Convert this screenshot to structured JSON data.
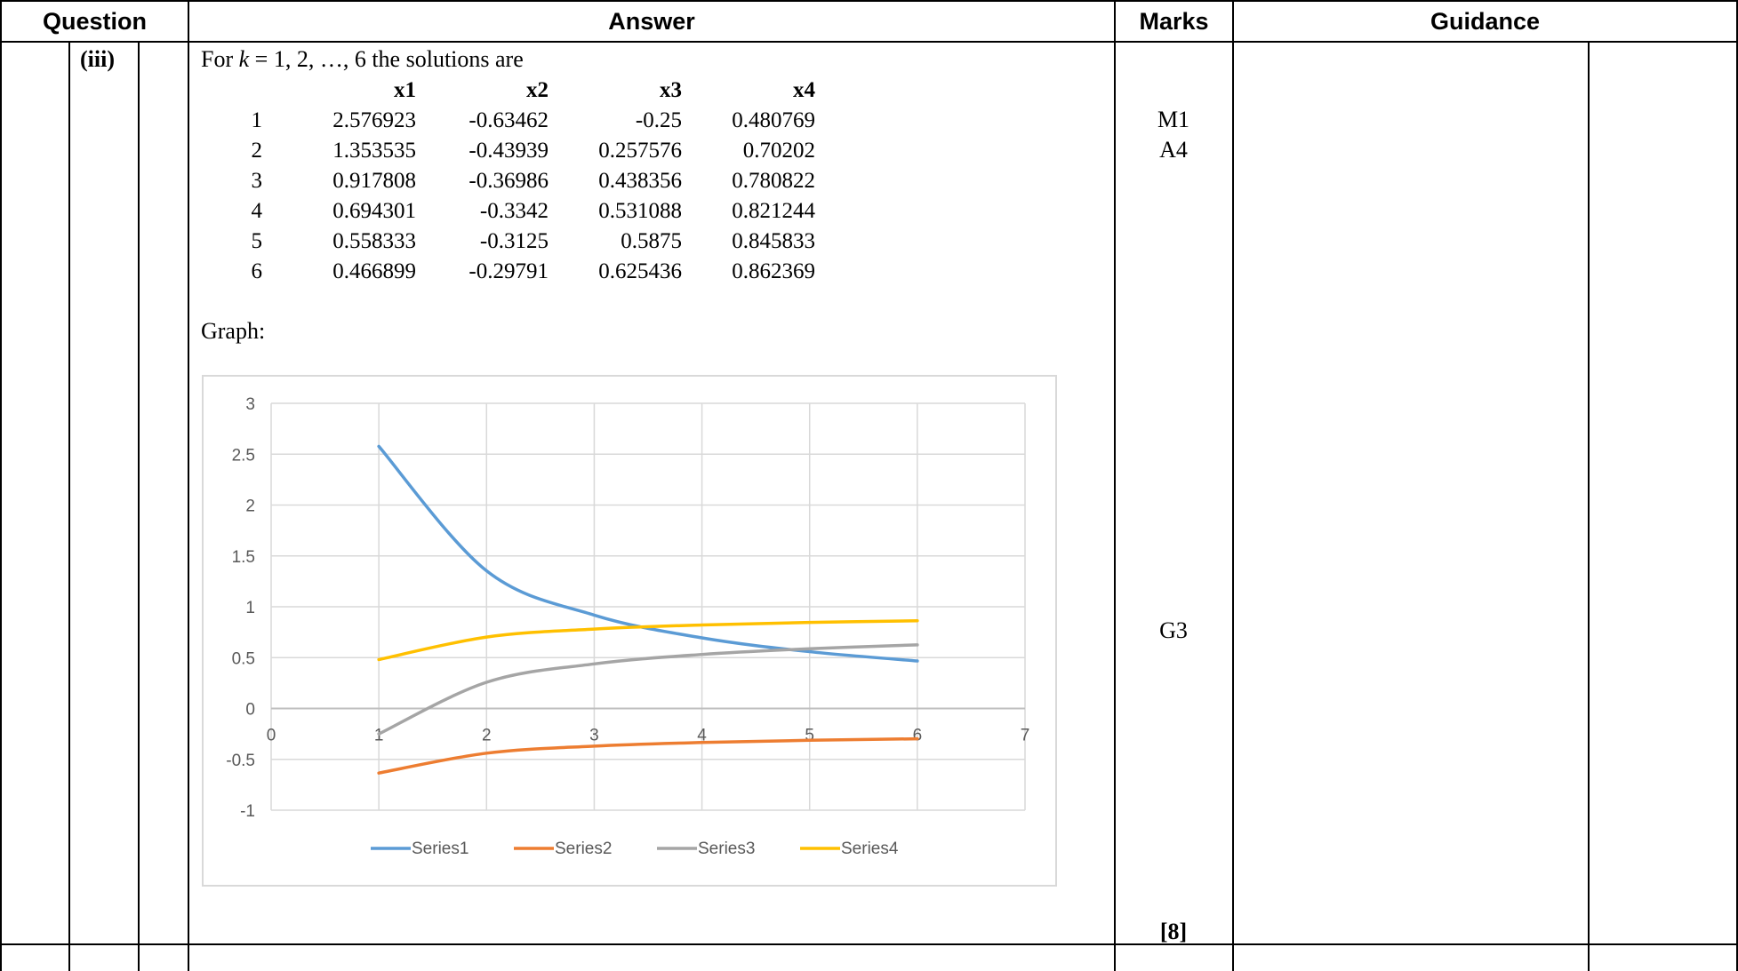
{
  "headers": {
    "question": "Question",
    "answer": "Answer",
    "marks": "Marks",
    "guidance": "Guidance"
  },
  "question_part": "(iii)",
  "intro": {
    "prefix": "For ",
    "k": "k",
    "suffix": " = 1, 2, …, 6 the solutions are"
  },
  "solutions_table": {
    "columns": [
      "x1",
      "x2",
      "x3",
      "x4"
    ],
    "rows": [
      {
        "k": "1",
        "x1": "2.576923",
        "x2": "-0.63462",
        "x3": "-0.25",
        "x4": "0.480769"
      },
      {
        "k": "2",
        "x1": "1.353535",
        "x2": "-0.43939",
        "x3": "0.257576",
        "x4": "0.70202"
      },
      {
        "k": "3",
        "x1": "0.917808",
        "x2": "-0.36986",
        "x3": "0.438356",
        "x4": "0.780822"
      },
      {
        "k": "4",
        "x1": "0.694301",
        "x2": "-0.3342",
        "x3": "0.531088",
        "x4": "0.821244"
      },
      {
        "k": "5",
        "x1": "0.558333",
        "x2": "-0.3125",
        "x3": "0.5875",
        "x4": "0.845833"
      },
      {
        "k": "6",
        "x1": "0.466899",
        "x2": "-0.29791",
        "x3": "0.625436",
        "x4": "0.862369"
      }
    ]
  },
  "graph_label": "Graph:",
  "marks": {
    "m1": "M1",
    "a4": "A4",
    "g3": "G3",
    "total": "[8]"
  },
  "chart_data": {
    "type": "line",
    "x": [
      1,
      2,
      3,
      4,
      5,
      6
    ],
    "series": [
      {
        "name": "Series1",
        "color": "#5b9bd5",
        "values": [
          2.576923,
          1.353535,
          0.917808,
          0.694301,
          0.558333,
          0.466899
        ]
      },
      {
        "name": "Series2",
        "color": "#ed7d31",
        "values": [
          -0.63462,
          -0.43939,
          -0.36986,
          -0.3342,
          -0.3125,
          -0.29791
        ]
      },
      {
        "name": "Series3",
        "color": "#a5a5a5",
        "values": [
          -0.25,
          0.257576,
          0.438356,
          0.531088,
          0.5875,
          0.625436
        ]
      },
      {
        "name": "Series4",
        "color": "#ffc000",
        "values": [
          0.480769,
          0.70202,
          0.780822,
          0.821244,
          0.845833,
          0.862369
        ]
      }
    ],
    "xlim": [
      0,
      7
    ],
    "ylim": [
      -1,
      3
    ],
    "x_ticks": [
      "0",
      "1",
      "2",
      "3",
      "4",
      "5",
      "6",
      "7"
    ],
    "y_ticks": [
      "3",
      "2.5",
      "2",
      "1.5",
      "1",
      "0.5",
      "0",
      "-0.5",
      "-1"
    ],
    "grid": true,
    "smooth": true,
    "legend_position": "bottom",
    "title": "",
    "xlabel": "",
    "ylabel": ""
  }
}
